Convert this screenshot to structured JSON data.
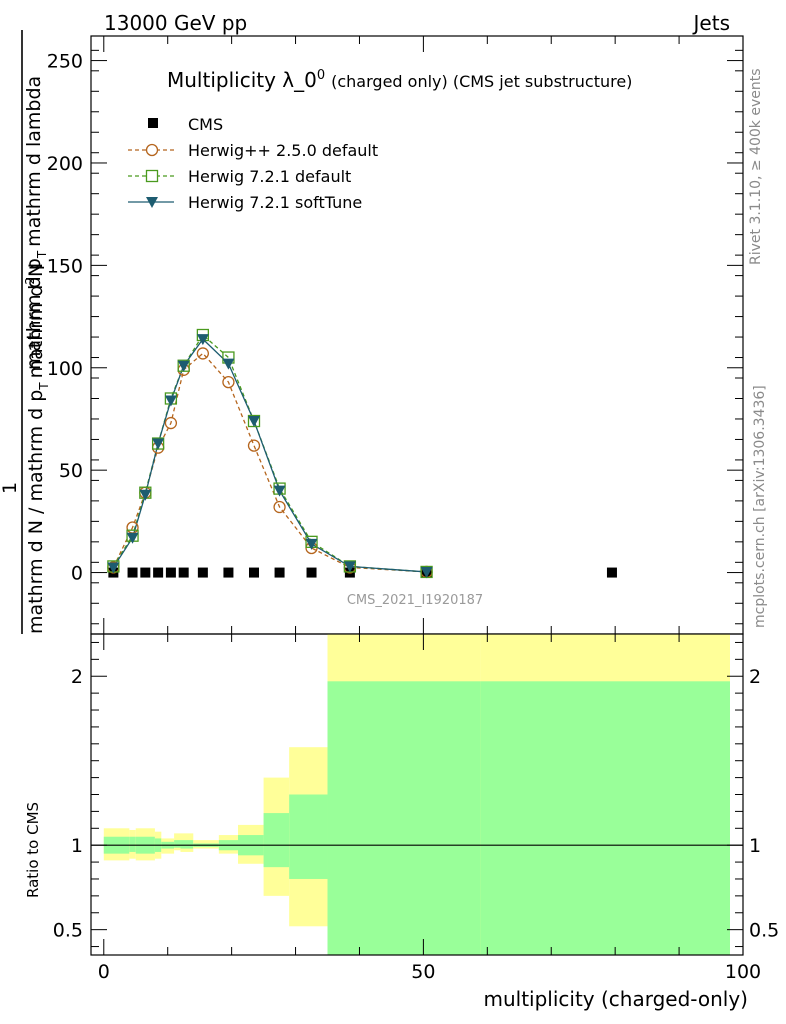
{
  "header": {
    "left": "13000 GeV pp",
    "right": "Jets"
  },
  "side_labels": {
    "rivet": "Rivet 3.1.10, ≥ 400k events",
    "mcplots": "mcplots.cern.ch [arXiv:1306.3436]"
  },
  "chart_data": {
    "type": "line",
    "title_main": "Multiplicity λ_0",
    "title_sup": "0",
    "title_sub": "(charged only) (CMS jet substructure)",
    "watermark": "CMS_2021_I1920187",
    "ylabel_top_1": "1",
    "ylabel_top_2": "mathrm d N / mathrm d p",
    "ylabel_top_2b": "T",
    "ylabel_top_3": "mathrm d",
    "ylabel_top_3b": "2",
    "ylabel_top_4": "N",
    "ylabel_top_5": "mathrm d p",
    "ylabel_top_5b": "T",
    "ylabel_top_6": "mathrm d lambda",
    "ylabel_ratio": "Ratio to CMS",
    "xlabel": "multiplicity (charged-only)",
    "xlim": [
      -2,
      100
    ],
    "ylim_main": [
      -30,
      262
    ],
    "ylim_ratio": [
      0.35,
      2.25
    ],
    "x_ticks": [
      0,
      50,
      100
    ],
    "y_ticks_main": [
      0,
      50,
      100,
      150,
      200,
      250
    ],
    "y_ticks_ratio": [
      0.5,
      1,
      2
    ],
    "legend": [
      "CMS",
      "Herwig++ 2.5.0 default",
      "Herwig 7.2.1 default",
      "Herwig 7.2.1 softTune"
    ],
    "cms": {
      "x": [
        1.5,
        4.5,
        6.5,
        8.5,
        10.5,
        12.5,
        15.5,
        19.5,
        23.5,
        27.5,
        32.5,
        38.5,
        50.5,
        79.5
      ],
      "y": [
        0,
        0,
        0,
        0,
        0,
        0,
        0,
        0,
        0,
        0,
        0,
        0,
        0,
        0
      ]
    },
    "series": [
      {
        "name": "Herwig++ 2.5.0 default",
        "color": "#b5651d",
        "marker": "circle",
        "dash": "4,3",
        "x": [
          1.5,
          4.5,
          6.5,
          8.5,
          10.5,
          12.5,
          15.5,
          19.5,
          23.5,
          27.5,
          32.5,
          38.5,
          50.5
        ],
        "y": [
          2.5,
          22,
          39,
          61,
          73,
          99,
          107,
          93,
          62,
          32,
          12,
          2.5,
          0.3
        ]
      },
      {
        "name": "Herwig 7.2.1 default",
        "color": "#4a9a1e",
        "marker": "square",
        "dash": "4,3",
        "x": [
          1.5,
          4.5,
          6.5,
          8.5,
          10.5,
          12.5,
          15.5,
          19.5,
          23.5,
          27.5,
          32.5,
          38.5,
          50.5
        ],
        "y": [
          3,
          18,
          39,
          63,
          85,
          101,
          116,
          105,
          74,
          41,
          15,
          3,
          0.3
        ]
      },
      {
        "name": "Herwig 7.2.1 softTune",
        "color": "#1d5c70",
        "marker": "triangle",
        "dash": "",
        "x": [
          1.5,
          4.5,
          6.5,
          8.5,
          10.5,
          12.5,
          15.5,
          19.5,
          23.5,
          27.5,
          32.5,
          38.5,
          50.5
        ],
        "y": [
          2.5,
          17,
          38,
          63,
          84,
          101,
          114,
          102,
          74,
          40,
          14,
          3,
          0.3
        ]
      }
    ],
    "ratio_bands": {
      "edges": [
        0,
        4,
        5,
        8,
        9,
        11,
        12,
        14,
        18,
        21,
        25,
        29,
        35,
        59,
        100
      ],
      "yellow_lo": [
        0.91,
        0.92,
        0.91,
        0.92,
        0.95,
        0.97,
        0.96,
        0.98,
        0.95,
        0.89,
        0.7,
        0.52,
        0.0,
        0.0
      ],
      "yellow_hi": [
        1.1,
        1.09,
        1.1,
        1.08,
        1.04,
        1.07,
        1.07,
        1.03,
        1.06,
        1.12,
        1.4,
        1.58,
        2.4,
        2.4
      ],
      "green_lo": [
        0.95,
        0.96,
        0.95,
        0.96,
        0.98,
        0.985,
        0.98,
        0.99,
        0.97,
        0.94,
        0.87,
        0.8,
        0.0,
        0.0
      ],
      "green_hi": [
        1.05,
        1.05,
        1.05,
        1.04,
        1.02,
        1.03,
        1.03,
        1.01,
        1.03,
        1.06,
        1.19,
        1.3,
        1.97,
        1.97
      ]
    }
  }
}
